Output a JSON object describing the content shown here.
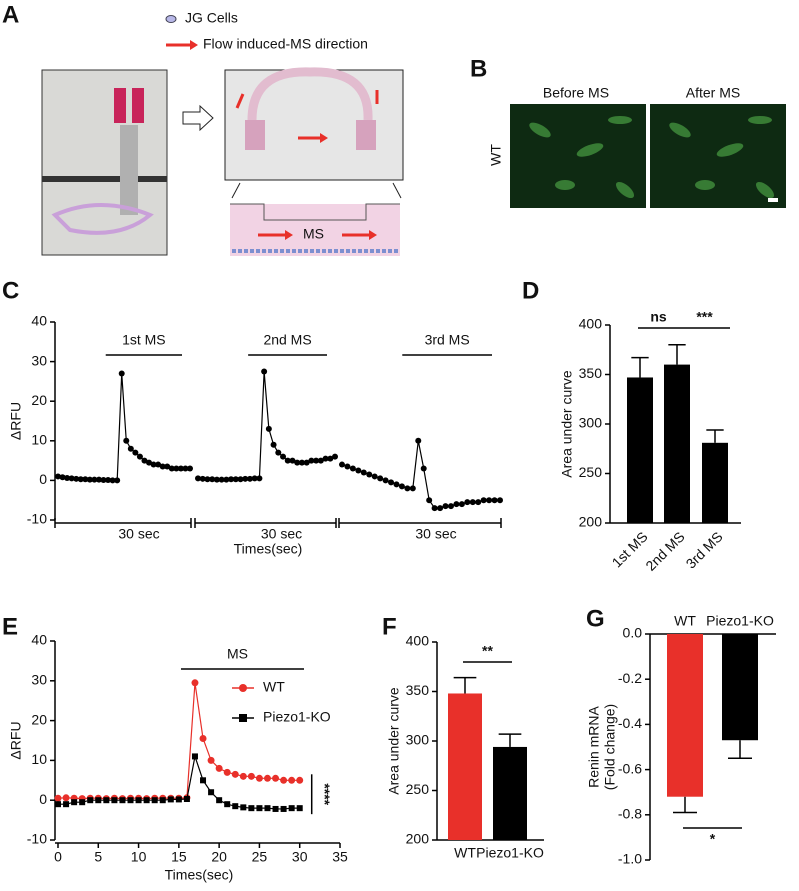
{
  "panels": [
    "A",
    "B",
    "C",
    "D",
    "E",
    "F",
    "G"
  ],
  "diagram": {
    "legend": [
      "JG Cells",
      "Flow induced-MS direction"
    ],
    "channel_label": "MS"
  },
  "images": {
    "columns": [
      "Before MS",
      "After MS"
    ],
    "row": "WT"
  },
  "chart_data": [
    {
      "type": "line",
      "ylabel": "ΔRFU",
      "xlabel": "Times(sec)",
      "ylim": [
        -10,
        40
      ],
      "yticks": [
        -10,
        0,
        10,
        20,
        30,
        40
      ],
      "segments": [
        {
          "label": "1st MS",
          "duration": "30 sec",
          "values": [
            1,
            0.8,
            0.6,
            0.5,
            0.4,
            0.3,
            0.3,
            0.2,
            0.2,
            0.2,
            0.1,
            0.1,
            0,
            0,
            27,
            10,
            8,
            7,
            6,
            5,
            4.5,
            4,
            4,
            3.5,
            3.5,
            3,
            3,
            3,
            3,
            3
          ]
        },
        {
          "label": "2nd MS",
          "duration": "30 sec",
          "values": [
            0.5,
            0.4,
            0.3,
            0.3,
            0.2,
            0.2,
            0.2,
            0.3,
            0.3,
            0.3,
            0.4,
            0.4,
            0.5,
            0.5,
            27.5,
            13,
            9,
            7,
            6,
            5,
            5,
            4.5,
            4.5,
            4.5,
            5,
            5,
            5,
            5.5,
            5.5,
            6
          ]
        },
        {
          "label": "3rd MS",
          "duration": "30 sec",
          "values": [
            4,
            3.5,
            3,
            2.5,
            2,
            1.5,
            1,
            0.5,
            0,
            -0.5,
            -1,
            -1.5,
            -2,
            -2,
            10,
            3,
            -5,
            -7,
            -7,
            -6.5,
            -6.5,
            -6,
            -6,
            -5.5,
            -5.5,
            -5.5,
            -5,
            -5,
            -5,
            -5
          ]
        }
      ]
    },
    {
      "type": "bar",
      "ylabel": "Area under curve",
      "categories": [
        "1st MS",
        "2nd MS",
        "3rd MS"
      ],
      "values": [
        347,
        360,
        281
      ],
      "errors": [
        20,
        20,
        13
      ],
      "colors": [
        "#000000",
        "#000000",
        "#000000"
      ],
      "ylim": [
        200,
        400
      ],
      "yticks": [
        200,
        250,
        300,
        350,
        400
      ],
      "significance": [
        "ns",
        "***"
      ]
    },
    {
      "type": "line",
      "ylabel": "ΔRFU",
      "xlabel": "Times(sec)",
      "annotation": "MS",
      "significance": "****",
      "xlim": [
        0,
        35
      ],
      "xticks": [
        0,
        5,
        10,
        15,
        20,
        25,
        30,
        35
      ],
      "ylim": [
        -10,
        40
      ],
      "yticks": [
        -10,
        0,
        10,
        20,
        30,
        40
      ],
      "x": [
        0,
        1,
        2,
        3,
        4,
        5,
        6,
        7,
        8,
        9,
        10,
        11,
        12,
        13,
        14,
        15,
        16,
        17,
        18,
        19,
        20,
        21,
        22,
        23,
        24,
        25,
        26,
        27,
        28,
        29,
        30
      ],
      "series": [
        {
          "name": "WT",
          "color": "#e8302a",
          "values": [
            0.5,
            0.6,
            0.5,
            0.4,
            0.5,
            0.5,
            0.4,
            0.5,
            0.4,
            0.5,
            0.5,
            0.4,
            0.5,
            0.5,
            0.5,
            0.5,
            0.6,
            29.5,
            15.5,
            10,
            8,
            7,
            6.5,
            6,
            6,
            5.5,
            5.5,
            5.5,
            5,
            5,
            5
          ]
        },
        {
          "name": "Piezo1-KO",
          "color": "#000000",
          "values": [
            -1,
            -1,
            -0.5,
            -0.5,
            0,
            0,
            0,
            0,
            0,
            0,
            0,
            0,
            0,
            0,
            0.2,
            0.2,
            0.3,
            11,
            5,
            2,
            0,
            -1,
            -1.5,
            -1.8,
            -2,
            -2,
            -2,
            -2.2,
            -2.2,
            -2,
            -2
          ]
        }
      ]
    },
    {
      "type": "bar",
      "ylabel": "Area under curve",
      "categories": [
        "WT",
        "Piezo1-KO"
      ],
      "values": [
        348,
        294
      ],
      "errors": [
        16,
        13
      ],
      "colors": [
        "#e8302a",
        "#000000"
      ],
      "ylim": [
        200,
        400
      ],
      "yticks": [
        200,
        250,
        300,
        350,
        400
      ],
      "significance": [
        "**"
      ]
    },
    {
      "type": "bar",
      "ylabel": [
        "Renin mRNA",
        "(Fold change)"
      ],
      "categories": [
        "WT",
        "Piezo1-KO"
      ],
      "values": [
        -0.72,
        -0.47
      ],
      "errors": [
        0.07,
        0.08
      ],
      "colors": [
        "#e8302a",
        "#000000"
      ],
      "ylim": [
        -1,
        0
      ],
      "yticks": [
        {
          "value": 0,
          "label": "0.0"
        },
        -0.2,
        -0.4,
        -0.6,
        -0.8,
        {
          "value": -1,
          "label": "-1.0"
        }
      ],
      "significance": [
        "*"
      ]
    }
  ]
}
